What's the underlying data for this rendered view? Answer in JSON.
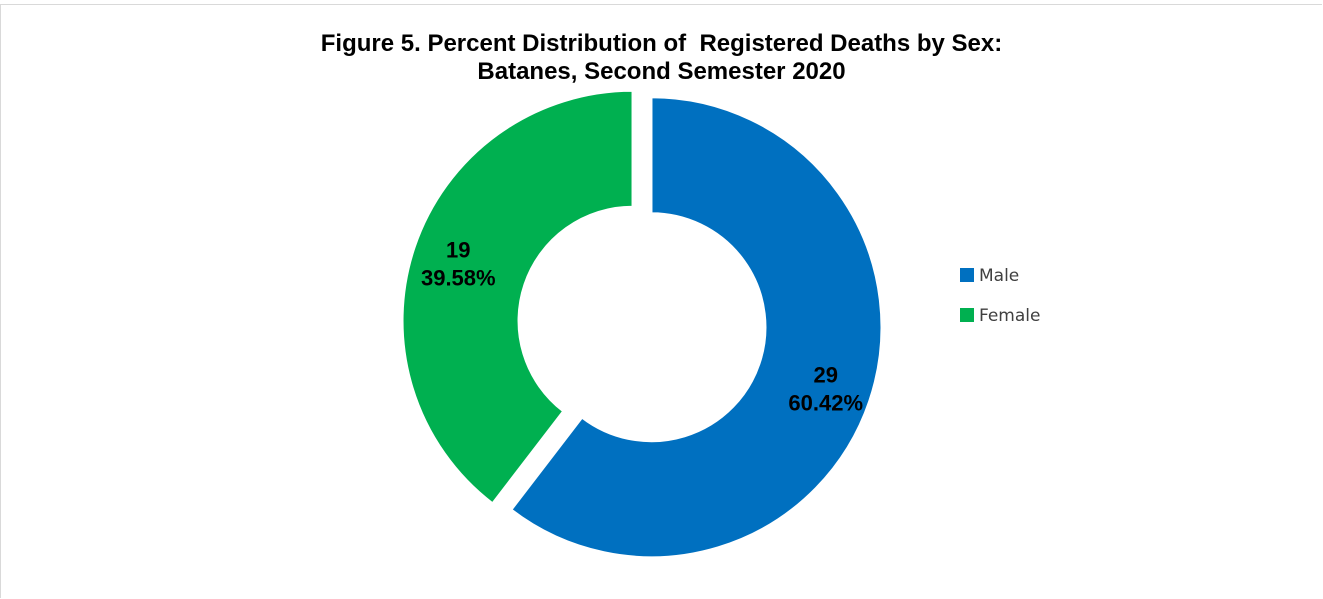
{
  "chart_data": {
    "type": "pie",
    "variant": "doughnut",
    "title_line1": "Figure 5. Percent Distribution of  Registered Deaths by Sex:",
    "title_line2": "Batanes, Second Semester 2020",
    "slices": [
      {
        "label": "Male",
        "value": 29,
        "percent": "60.42%",
        "color": "#0070C0"
      },
      {
        "label": "Female",
        "value": 19,
        "percent": "39.58%",
        "color": "#00B050"
      }
    ],
    "legend_position": "right"
  }
}
